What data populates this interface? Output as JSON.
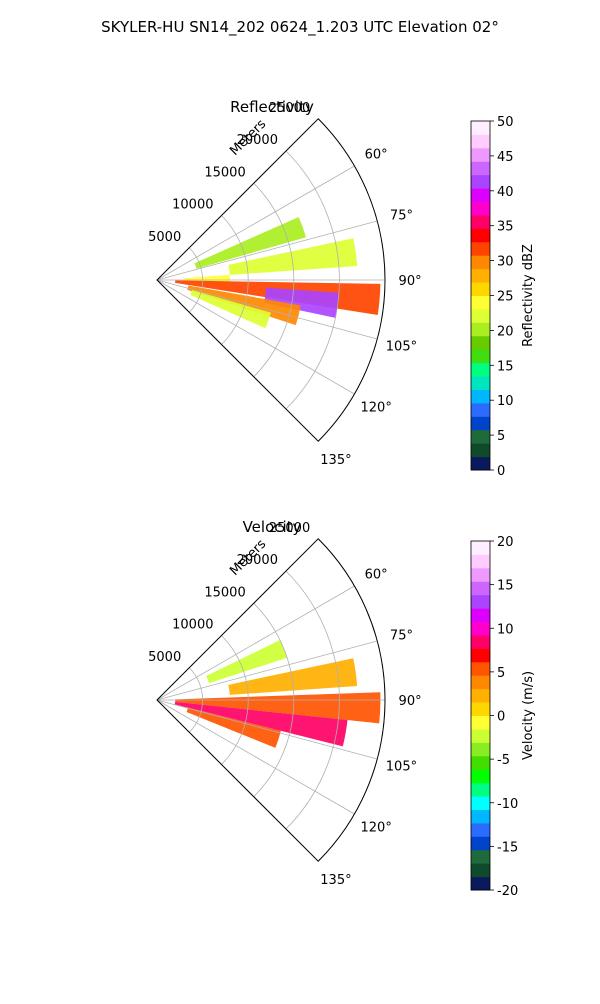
{
  "figure": {
    "suptitle": "SKYLER-HU  SN14_202  0624_1.203 UTC Elevation 02°"
  },
  "chart_data": [
    {
      "type": "heatmap",
      "projection": "polar-sector",
      "title": "Reflectivity",
      "range_axis_label": "Meters",
      "range_ticks": [
        5000,
        10000,
        15000,
        20000,
        25000
      ],
      "range_max": 25000,
      "azimuth_range": [
        45,
        135
      ],
      "azimuth_ticks": [
        "60°",
        "75°",
        "90°",
        "105°",
        "120°",
        "135°"
      ],
      "colorbar": {
        "label": "Reflectivity dBZ",
        "range": [
          0,
          50
        ],
        "ticks": [
          0,
          5,
          10,
          15,
          20,
          25,
          30,
          35,
          40,
          45,
          50
        ]
      },
      "colors": [
        "#0a1a5c",
        "#0f4a2a",
        "#1e6a3a",
        "#0044cc",
        "#2b6cff",
        "#00b7ff",
        "#00e5c0",
        "#00ff80",
        "#40dd10",
        "#66cc00",
        "#aaee22",
        "#ddff33",
        "#ffff33",
        "#ffd700",
        "#ffb000",
        "#ff8800",
        "#ff4400",
        "#ff0000",
        "#ff0066",
        "#ff00cc",
        "#dd00ff",
        "#aa44ff",
        "#cc66ff",
        "#ee99ff",
        "#ffccff",
        "#ffeeff"
      ],
      "echoes": [
        {
          "az": 70,
          "r0": 4500,
          "r1": 17000,
          "value": 20
        },
        {
          "az": 82,
          "r0": 8000,
          "r1": 22000,
          "value": 22
        },
        {
          "az": 90,
          "r0": 3000,
          "r1": 8000,
          "value": 24
        },
        {
          "az": 95,
          "r0": 2000,
          "r1": 24500,
          "value": 32
        },
        {
          "az": 98,
          "r0": 12000,
          "r1": 20000,
          "value": 42
        },
        {
          "az": 104,
          "r0": 3500,
          "r1": 16000,
          "value": 30
        },
        {
          "az": 110,
          "r0": 4000,
          "r1": 13000,
          "value": 22
        }
      ]
    },
    {
      "type": "heatmap",
      "projection": "polar-sector",
      "title": "Velocity",
      "range_axis_label": "Meters",
      "range_ticks": [
        5000,
        10000,
        15000,
        20000,
        25000
      ],
      "range_max": 25000,
      "azimuth_range": [
        45,
        135
      ],
      "azimuth_ticks": [
        "60°",
        "75°",
        "90°",
        "105°",
        "120°",
        "135°"
      ],
      "colorbar": {
        "label": "Velocity (m/s)",
        "range": [
          -20,
          20
        ],
        "ticks": [
          -20,
          -15,
          -10,
          -5,
          0,
          5,
          10,
          15,
          20
        ]
      },
      "colors": [
        "#0a1a5c",
        "#0f4a2a",
        "#1e6a3a",
        "#0044cc",
        "#2b6cff",
        "#00b7ff",
        "#00ffff",
        "#00ff80",
        "#00ff00",
        "#44dd00",
        "#88ee22",
        "#ccff33",
        "#ffff33",
        "#ffd700",
        "#ffb000",
        "#ff8800",
        "#ff5500",
        "#ff0000",
        "#ff0066",
        "#ff00cc",
        "#dd00ff",
        "#aa44ff",
        "#cc66ff",
        "#ee99ff",
        "#ffccff",
        "#ffeeff"
      ],
      "echoes": [
        {
          "az": 68,
          "r0": 6000,
          "r1": 15000,
          "value": -3
        },
        {
          "az": 82,
          "r0": 8000,
          "r1": 22000,
          "value": 2
        },
        {
          "az": 92,
          "r0": 2000,
          "r1": 24500,
          "value": 6
        },
        {
          "az": 100,
          "r0": 2000,
          "r1": 21000,
          "value": 9
        },
        {
          "az": 108,
          "r0": 3500,
          "r1": 14000,
          "value": 5
        }
      ]
    }
  ]
}
